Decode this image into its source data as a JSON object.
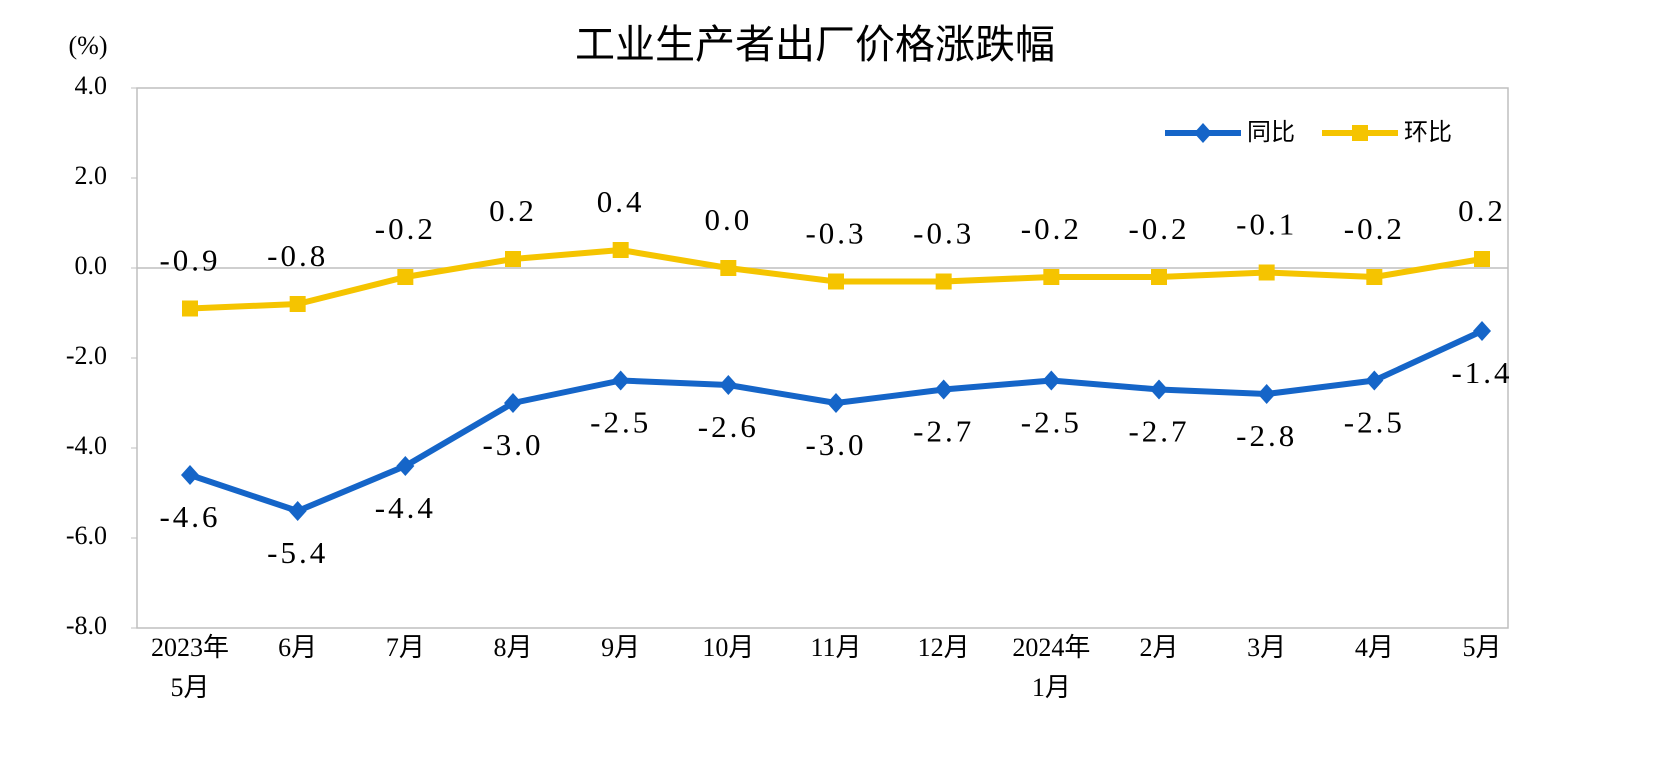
{
  "chart_data": {
    "type": "line",
    "title": "工业生产者出厂价格涨跌幅",
    "y_label": "(%)",
    "categories": [
      "2023年5月",
      "6月",
      "7月",
      "8月",
      "9月",
      "10月",
      "11月",
      "12月",
      "2024年1月",
      "2月",
      "3月",
      "4月",
      "5月"
    ],
    "ylim": [
      -8,
      4
    ],
    "yticks": [
      {
        "value": -8,
        "label": "-8.0"
      },
      {
        "value": -6,
        "label": "-6.0"
      },
      {
        "value": -4,
        "label": "-4.0"
      },
      {
        "value": -2,
        "label": "-2.0"
      },
      {
        "value": 0,
        "label": "0.0"
      },
      {
        "value": 2,
        "label": "2.0"
      },
      {
        "value": 4,
        "label": "4.0"
      }
    ],
    "legend": "top-right",
    "series": [
      {
        "name": "同比",
        "color": "#1565c8",
        "marker": "diamond",
        "label_position": "below",
        "values": [
          -4.6,
          -5.4,
          -4.4,
          -3.0,
          -2.5,
          -2.6,
          -3.0,
          -2.7,
          -2.5,
          -2.7,
          -2.8,
          -2.5,
          -1.4
        ],
        "value_labels": [
          "-4.6",
          "-5.4",
          "-4.4",
          "-3.0",
          "-2.5",
          "-2.6",
          "-3.0",
          "-2.7",
          "-2.5",
          "-2.7",
          "-2.8",
          "-2.5",
          "-1.4"
        ]
      },
      {
        "name": "环比",
        "color": "#f5c400",
        "marker": "square",
        "label_position": "above",
        "values": [
          -0.9,
          -0.8,
          -0.2,
          0.2,
          0.4,
          0.0,
          -0.3,
          -0.3,
          -0.2,
          -0.2,
          -0.1,
          -0.2,
          0.2
        ],
        "value_labels": [
          "-0.9",
          "-0.8",
          "-0.2",
          "0.2",
          "0.4",
          "0.0",
          "-0.3",
          "-0.3",
          "-0.2",
          "-0.2",
          "-0.1",
          "-0.2",
          "0.2"
        ]
      }
    ]
  }
}
